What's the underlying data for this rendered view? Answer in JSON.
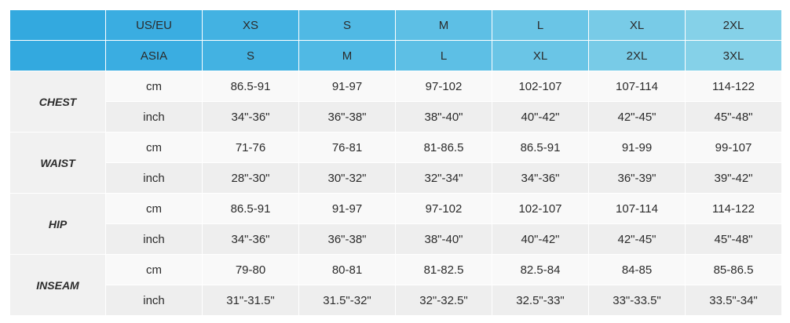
{
  "header": {
    "rows": [
      {
        "label": "US/EU",
        "sizes": [
          "XS",
          "S",
          "M",
          "L",
          "XL",
          "2XL"
        ]
      },
      {
        "label": "ASIA",
        "sizes": [
          "S",
          "M",
          "L",
          "XL",
          "2XL",
          "3XL"
        ]
      }
    ]
  },
  "body": {
    "groups": [
      {
        "name": "CHEST",
        "rows": [
          {
            "unit": "cm",
            "values": [
              "86.5-91",
              "91-97",
              "97-102",
              "102-107",
              "107-114",
              "114-122"
            ]
          },
          {
            "unit": "inch",
            "values": [
              "34\"-36\"",
              "36\"-38\"",
              "38\"-40\"",
              "40\"-42\"",
              "42\"-45\"",
              "45\"-48\""
            ]
          }
        ]
      },
      {
        "name": "WAIST",
        "rows": [
          {
            "unit": "cm",
            "values": [
              "71-76",
              "76-81",
              "81-86.5",
              "86.5-91",
              "91-99",
              "99-107"
            ]
          },
          {
            "unit": "inch",
            "values": [
              "28\"-30\"",
              "30\"-32\"",
              "32\"-34\"",
              "34\"-36\"",
              "36\"-39\"",
              "39\"-42\""
            ]
          }
        ]
      },
      {
        "name": "HIP",
        "rows": [
          {
            "unit": "cm",
            "values": [
              "86.5-91",
              "91-97",
              "97-102",
              "102-107",
              "107-114",
              "114-122"
            ]
          },
          {
            "unit": "inch",
            "values": [
              "34\"-36\"",
              "36\"-38\"",
              "38\"-40\"",
              "40\"-42\"",
              "42\"-45\"",
              "45\"-48\""
            ]
          }
        ]
      },
      {
        "name": "INSEAM",
        "rows": [
          {
            "unit": "cm",
            "values": [
              "79-80",
              "80-81",
              "81-82.5",
              "82.5-84",
              "84-85",
              "85-86.5"
            ]
          },
          {
            "unit": "inch",
            "values": [
              "31\"-31.5\"",
              "31.5\"-32\"",
              "32\"-32.5\"",
              "32.5\"-33\"",
              "33\"-33.5\"",
              "33.5\"-34\""
            ]
          }
        ]
      }
    ]
  }
}
